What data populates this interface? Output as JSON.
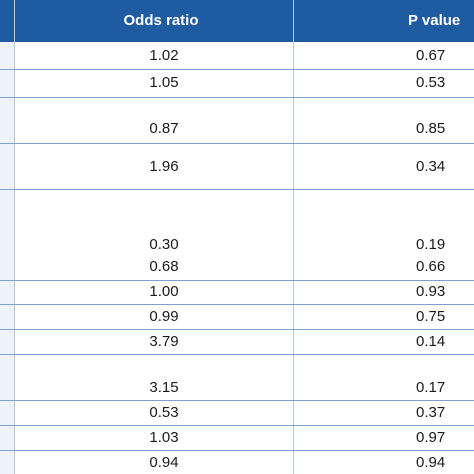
{
  "header": {
    "col_odds": "Odds ratio",
    "col_p": "P value"
  },
  "rows": [
    {
      "odds": "1.02",
      "p": "0.67"
    },
    {
      "odds": "1.05",
      "p": "0.53"
    },
    {
      "odds": "0.87",
      "p": "0.85"
    },
    {
      "odds": "1.96",
      "p": "0.34"
    },
    {
      "odds": "0.30",
      "p": "0.19"
    },
    {
      "odds": "0.68",
      "p": "0.66"
    },
    {
      "odds": "1.00",
      "p": "0.93"
    },
    {
      "odds": "0.99",
      "p": "0.75"
    },
    {
      "odds": "3.79",
      "p": "0.14"
    },
    {
      "odds": "3.15",
      "p": "0.17"
    },
    {
      "odds": "0.53",
      "p": "0.37"
    },
    {
      "odds": "1.03",
      "p": "0.97"
    },
    {
      "odds": "0.94",
      "p": "0.94"
    }
  ]
}
